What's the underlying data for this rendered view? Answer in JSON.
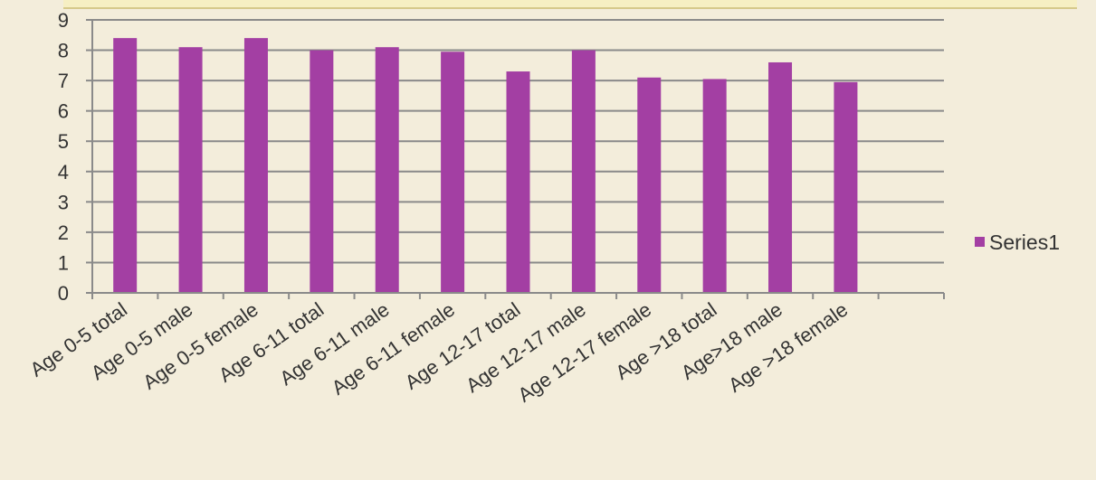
{
  "chart_data": {
    "type": "bar",
    "categories": [
      "Age 0-5 total",
      "Age 0-5 male",
      "Age 0-5 female",
      "Age 6-11 total",
      "Age 6-11 male",
      "Age 6-11 female",
      "Age 12-17 total",
      "Age 12-17 male",
      "Age 12-17 female",
      "Age >18 total",
      "Age>18 male",
      "Age >18 female"
    ],
    "series": [
      {
        "name": "Series1",
        "values": [
          8.4,
          8.1,
          8.4,
          8.0,
          8.1,
          7.95,
          7.3,
          8.0,
          7.1,
          7.05,
          7.6,
          6.95
        ],
        "color": "#a33fa3"
      }
    ],
    "ylim": [
      0,
      9
    ],
    "yticks": [
      "0",
      "1",
      "2",
      "3",
      "4",
      "5",
      "6",
      "7",
      "8",
      "9"
    ],
    "grid": true,
    "legend": "right",
    "xlabel": "",
    "ylabel": "",
    "title": ""
  },
  "colors": {
    "background": "#f3eddb",
    "grid": "#8a8a8a",
    "bar": "#a33fa3"
  }
}
